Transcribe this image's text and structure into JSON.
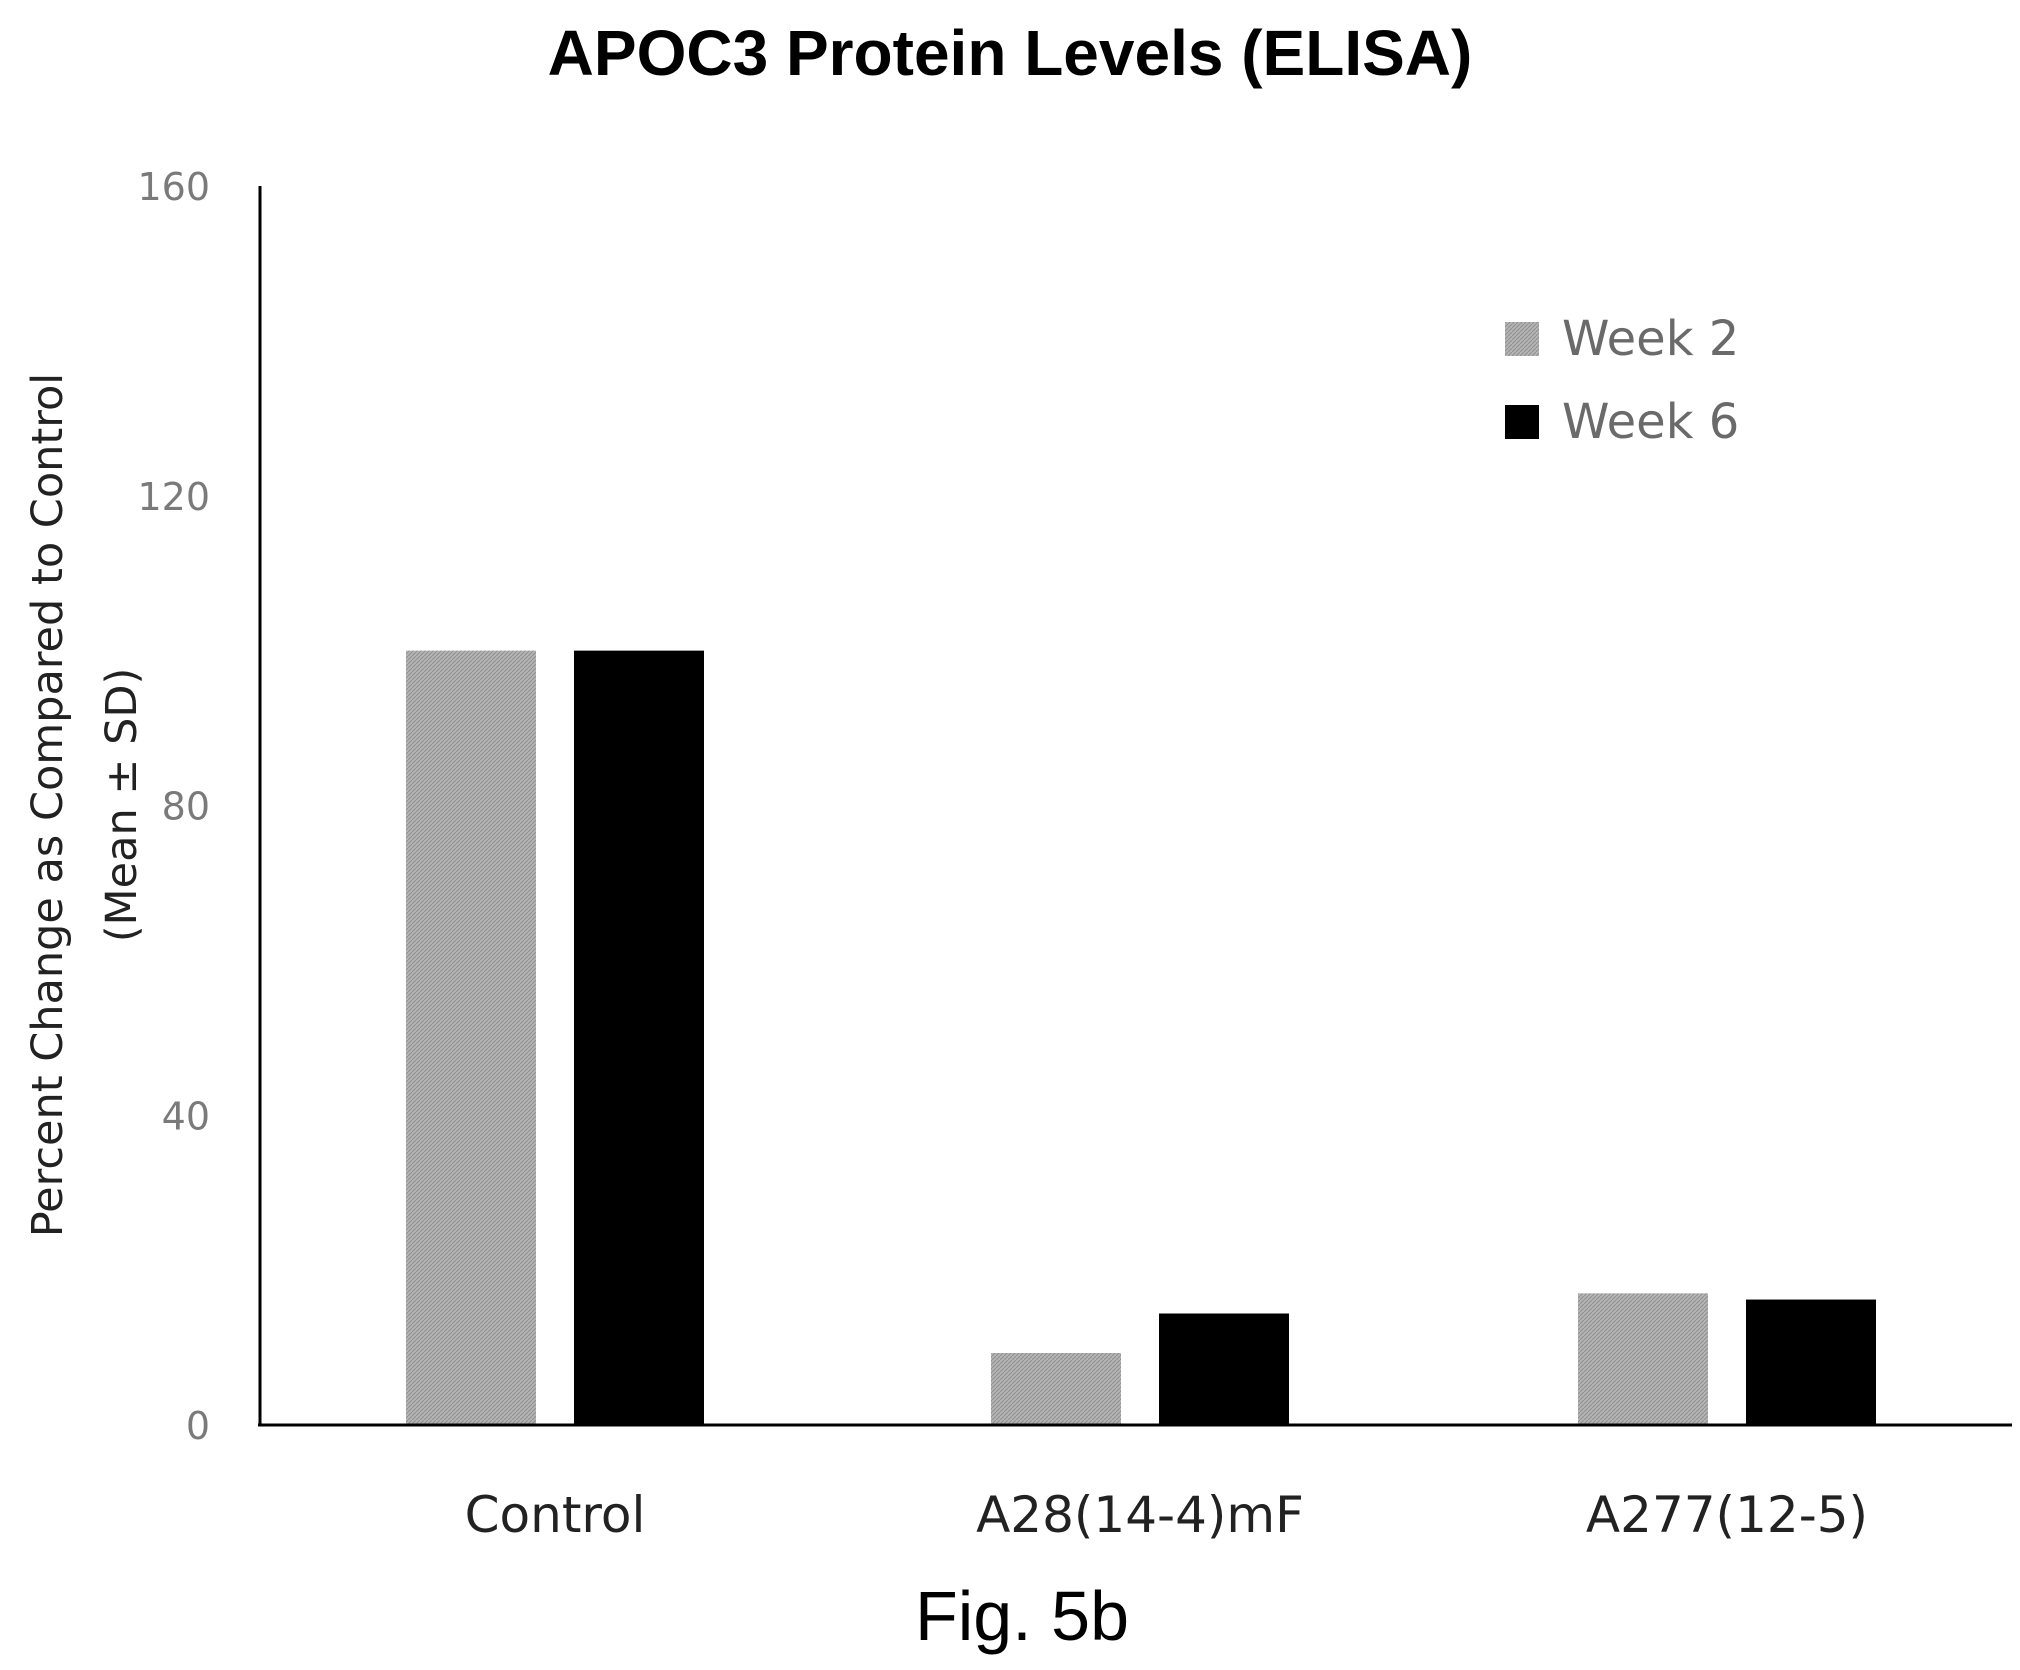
{
  "caption": "Fig. 5b",
  "colors": {
    "week2": "#a7a7a7",
    "week6": "#000000",
    "axis": "#000000",
    "tick_text": "#7a7a7a"
  },
  "chart_data": {
    "type": "bar",
    "title": "APOC3 Protein Levels (ELISA)",
    "xlabel": "",
    "ylabel_lines": [
      "Percent Change as Compared to Control",
      "(Mean ± SD)"
    ],
    "ylim": [
      0,
      160
    ],
    "yticks": [
      0,
      40,
      80,
      120,
      160
    ],
    "categories": [
      "Control",
      "A28(14-4)mF",
      "A277(12-5)"
    ],
    "series": [
      {
        "name": "Week 2",
        "values": [
          100,
          9.3,
          17
        ],
        "color": "#a7a7a7"
      },
      {
        "name": "Week 6",
        "values": [
          100,
          14.4,
          16.2
        ],
        "color": "#000000"
      }
    ],
    "legend_position": "top-right",
    "grid": false
  }
}
